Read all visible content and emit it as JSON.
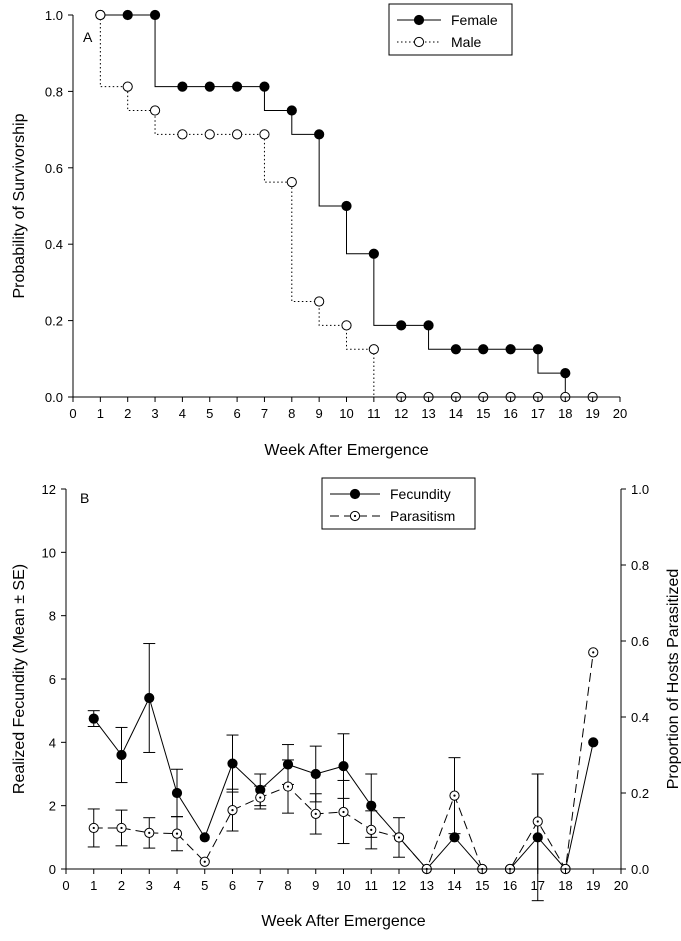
{
  "chart_data": [
    {
      "type": "line",
      "panel_label": "A",
      "xlabel": "Week After Emergence",
      "ylabel": "Probability of Survivorship",
      "xlim": [
        0,
        20
      ],
      "ylim": [
        0,
        1.0
      ],
      "x_ticks": [
        "0",
        "1",
        "2",
        "3",
        "4",
        "5",
        "6",
        "7",
        "8",
        "9",
        "10",
        "11",
        "12",
        "13",
        "14",
        "15",
        "16",
        "17",
        "18",
        "19",
        "20"
      ],
      "y_ticks": [
        "0.0",
        "0.2",
        "0.4",
        "0.6",
        "0.8",
        "1.0"
      ],
      "legend_position": "top-center",
      "step": true,
      "series": [
        {
          "name": "Female",
          "marker": "filled-circle",
          "line": "solid",
          "x": [
            1,
            2,
            3,
            4,
            5,
            6,
            7,
            8,
            9,
            10,
            11,
            12,
            13,
            14,
            15,
            16,
            17,
            18
          ],
          "values": [
            1.0,
            1.0,
            1.0,
            0.8125,
            0.8125,
            0.8125,
            0.8125,
            0.75,
            0.6875,
            0.5,
            0.375,
            0.1875,
            0.1875,
            0.125,
            0.125,
            0.125,
            0.125,
            0.0625
          ],
          "steps": [
            [
              1,
              1.0
            ],
            [
              3,
              1.0
            ],
            [
              3,
              0.8125
            ],
            [
              7,
              0.8125
            ],
            [
              7,
              0.75
            ],
            [
              8,
              0.75
            ],
            [
              8,
              0.6875
            ],
            [
              9,
              0.6875
            ],
            [
              9,
              0.5
            ],
            [
              10,
              0.5
            ],
            [
              10,
              0.375
            ],
            [
              11,
              0.375
            ],
            [
              11,
              0.1875
            ],
            [
              13,
              0.1875
            ],
            [
              13,
              0.125
            ],
            [
              17,
              0.125
            ],
            [
              17,
              0.0625
            ],
            [
              18,
              0.0625
            ],
            [
              18,
              0.0
            ]
          ]
        },
        {
          "name": "Male",
          "marker": "open-circle",
          "line": "dotted",
          "x": [
            1,
            2,
            3,
            4,
            5,
            6,
            7,
            8,
            9,
            10,
            11,
            12,
            13,
            14,
            15,
            16,
            17,
            18,
            19
          ],
          "values": [
            1.0,
            0.8125,
            0.75,
            0.6875,
            0.6875,
            0.6875,
            0.6875,
            0.5625,
            0.25,
            0.1875,
            0.125,
            0.0,
            0.0,
            0.0,
            0.0,
            0.0,
            0.0,
            0.0,
            0.0
          ],
          "steps": [
            [
              1,
              1.0
            ],
            [
              1,
              0.8125
            ],
            [
              2,
              0.8125
            ],
            [
              2,
              0.75
            ],
            [
              3,
              0.75
            ],
            [
              3,
              0.6875
            ],
            [
              7,
              0.6875
            ],
            [
              7,
              0.5625
            ],
            [
              8,
              0.5625
            ],
            [
              8,
              0.25
            ],
            [
              9,
              0.25
            ],
            [
              9,
              0.1875
            ],
            [
              10,
              0.1875
            ],
            [
              10,
              0.125
            ],
            [
              11,
              0.125
            ],
            [
              11,
              0.0
            ]
          ]
        }
      ]
    },
    {
      "type": "line",
      "panel_label": "B",
      "xlabel": "Week After Emergence",
      "ylabel": "Realized Fecundity (Mean ± SE)",
      "y2label": "Proportion of Hosts Parasitized",
      "xlim": [
        0,
        20
      ],
      "ylim": [
        0,
        12
      ],
      "y2lim": [
        0,
        1.0
      ],
      "x_ticks": [
        "0",
        "1",
        "2",
        "3",
        "4",
        "5",
        "6",
        "7",
        "8",
        "9",
        "10",
        "11",
        "12",
        "13",
        "14",
        "15",
        "16",
        "17",
        "18",
        "19",
        "20"
      ],
      "y_ticks": [
        "0",
        "2",
        "4",
        "6",
        "8",
        "10",
        "12"
      ],
      "y2_ticks": [
        "0.0",
        "0.2",
        "0.4",
        "0.6",
        "0.8",
        "1.0"
      ],
      "legend_position": "top-center",
      "series": [
        {
          "name": "Fecundity",
          "axis": "left",
          "marker": "filled-circle",
          "line": "solid",
          "x": [
            1,
            2,
            3,
            4,
            5,
            6,
            7,
            8,
            9,
            10,
            11,
            12,
            13,
            14,
            15,
            16,
            17,
            18,
            19
          ],
          "values": [
            4.75,
            3.6,
            5.4,
            2.4,
            1.0,
            3.33,
            2.5,
            3.3,
            3.0,
            3.25,
            2.0,
            1.0,
            0.0,
            1.0,
            0.0,
            0.0,
            1.0,
            0.0,
            4.0
          ],
          "se": [
            0.25,
            0.87,
            1.72,
            0.75,
            0.0,
            0.9,
            0.5,
            0.63,
            0.88,
            1.02,
            1.0,
            0.0,
            0.0,
            0.0,
            0.0,
            0.0,
            2.0,
            0.0,
            0.0
          ]
        },
        {
          "name": "Parasitism",
          "axis": "right",
          "marker": "dotted-circle",
          "line": "dashed",
          "x": [
            1,
            2,
            3,
            4,
            5,
            6,
            7,
            8,
            9,
            10,
            11,
            12,
            13,
            14,
            15,
            16,
            17,
            18,
            19
          ],
          "values": [
            0.108,
            0.108,
            0.095,
            0.093,
            0.019,
            0.155,
            0.188,
            0.217,
            0.145,
            0.15,
            0.103,
            0.083,
            0.0,
            0.193,
            0.0,
            0.0,
            0.125,
            0.0,
            0.57
          ],
          "se": [
            0.05,
            0.047,
            0.04,
            0.045,
            0.0,
            0.055,
            0.03,
            0.07,
            0.053,
            0.083,
            0.05,
            0.052,
            0.0,
            0.1,
            0.0,
            0.0,
            0.125,
            0.0,
            0.0
          ]
        }
      ]
    }
  ]
}
